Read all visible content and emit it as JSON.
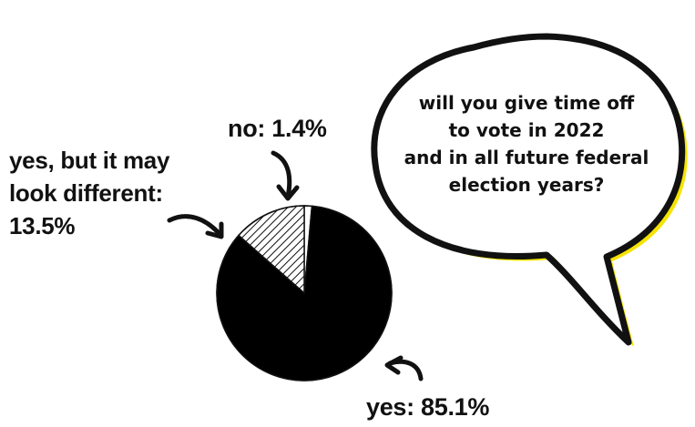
{
  "question": {
    "lines": [
      "will you give time off",
      "to vote in 2022",
      "and in all future federal",
      "election years?"
    ]
  },
  "chart_data": {
    "type": "pie",
    "title": "",
    "categories": [
      "yes",
      "yes, but it may look different",
      "no"
    ],
    "values": [
      85.1,
      13.5,
      1.4
    ],
    "unit": "%",
    "slice_colors": [
      "#000000",
      "hatched",
      "#ffffff"
    ],
    "data_labels": [
      {
        "lines": [
          "yes: 85.1%"
        ]
      },
      {
        "lines": [
          "yes, but it may",
          "look different:",
          "13.5%"
        ]
      },
      {
        "lines": [
          "no: 1.4%"
        ]
      }
    ]
  },
  "colors": {
    "bubble_outline": "#f5e400",
    "bubble_border": "#111111",
    "text": "#111111"
  }
}
